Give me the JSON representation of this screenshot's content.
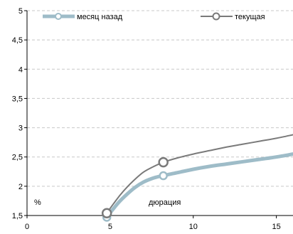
{
  "chart_data": {
    "type": "line",
    "title": "",
    "x_axis": {
      "label": "дюрация",
      "min": 0,
      "max": 16,
      "ticks": [
        0,
        5,
        10,
        15
      ],
      "tick_labels": [
        "0",
        "5",
        "10",
        "15"
      ]
    },
    "y_axis": {
      "label": "%",
      "min": 1.5,
      "max": 5,
      "ticks": [
        1.5,
        2,
        2.5,
        3,
        3.5,
        4,
        4.5,
        5
      ],
      "tick_labels": [
        "1,5",
        "2",
        "2,5",
        "3",
        "3,5",
        "4",
        "4,5",
        "5"
      ]
    },
    "grid": {
      "horizontal": true,
      "vertical": false,
      "style": "dashed"
    },
    "legend": {
      "position": "top"
    },
    "series": [
      {
        "name": "месяц назад",
        "color": "#9ebcc8",
        "points": [
          [
            4.55,
            1.43
          ],
          [
            5,
            1.55
          ],
          [
            5.5,
            1.72
          ],
          [
            6,
            1.86
          ],
          [
            6.5,
            1.98
          ],
          [
            7,
            2.07
          ],
          [
            7.5,
            2.13
          ],
          [
            8,
            2.17
          ],
          [
            9,
            2.23
          ],
          [
            10,
            2.29
          ],
          [
            11,
            2.34
          ],
          [
            12,
            2.38
          ],
          [
            13,
            2.42
          ],
          [
            14,
            2.46
          ],
          [
            15,
            2.5
          ],
          [
            16,
            2.55
          ]
        ],
        "markers": [
          [
            4.8,
            1.47
          ],
          [
            8.2,
            2.18
          ]
        ]
      },
      {
        "name": "текущая",
        "color": "#7a7a7a",
        "points": [
          [
            4.4,
            1.44
          ],
          [
            4.8,
            1.55
          ],
          [
            5.2,
            1.7
          ],
          [
            5.6,
            1.85
          ],
          [
            6,
            1.98
          ],
          [
            6.5,
            2.12
          ],
          [
            7,
            2.24
          ],
          [
            7.5,
            2.32
          ],
          [
            8.2,
            2.41
          ],
          [
            9,
            2.48
          ],
          [
            10,
            2.55
          ],
          [
            11,
            2.61
          ],
          [
            12,
            2.67
          ],
          [
            13,
            2.72
          ],
          [
            14,
            2.77
          ],
          [
            15,
            2.82
          ],
          [
            16,
            2.88
          ]
        ],
        "markers": [
          [
            4.8,
            1.54
          ],
          [
            8.2,
            2.41
          ]
        ]
      }
    ]
  }
}
